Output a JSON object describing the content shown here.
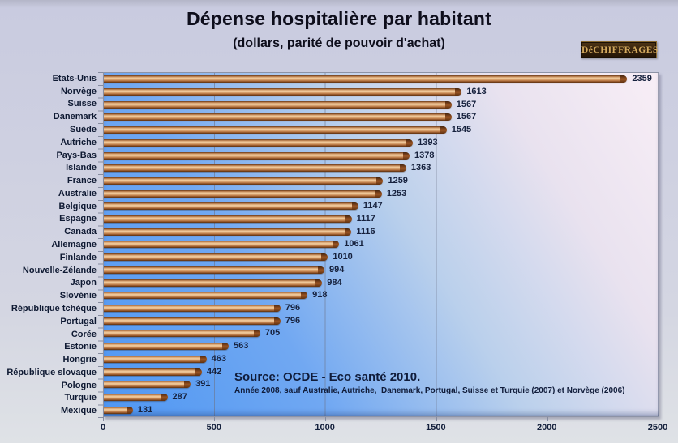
{
  "title": "Dépense hospitalière par habitant",
  "subtitle": "(dollars, parité de pouvoir d'achat)",
  "logo": {
    "text": "DéCHIFFRAGES"
  },
  "source": {
    "line1": "Source: OCDE - Eco santé 2010.",
    "line2": "Année 2008, sauf Australie, Autriche,  Danemark, Portugal, Suisse et Turquie (2007) et Norvège (2006)"
  },
  "chart_data": {
    "type": "bar",
    "orientation": "horizontal",
    "title": "Dépense hospitalière par habitant",
    "subtitle": "(dollars, parité de pouvoir d'achat)",
    "categories": [
      "Etats-Unis",
      "Norvège",
      "Suisse",
      "Danemark",
      "Suède",
      "Autriche",
      "Pays-Bas",
      "Islande",
      "France",
      "Australie",
      "Belgique",
      "Espagne",
      "Canada",
      "Allemagne",
      "Finlande",
      "Nouvelle-Zélande",
      "Japon",
      "Slovénie",
      "République tchèque",
      "Portugal",
      "Corée",
      "Estonie",
      "Hongrie",
      "République slovaque",
      "Pologne",
      "Turquie",
      "Mexique"
    ],
    "values": [
      2359,
      1613,
      1567,
      1567,
      1545,
      1393,
      1378,
      1363,
      1259,
      1253,
      1147,
      1117,
      1116,
      1061,
      1010,
      994,
      984,
      918,
      796,
      796,
      705,
      563,
      463,
      442,
      391,
      287,
      131
    ],
    "xlim": [
      0,
      2500
    ],
    "xticks": [
      0,
      500,
      1000,
      1500,
      2000,
      2500
    ],
    "grid": true,
    "legend": false,
    "value_labels": true
  },
  "colors": {
    "background": "#c9cbe0",
    "plot_left": "#4f97f3",
    "plot_right": "#f8eef6",
    "bar_highlight": "#f2cda0",
    "bar_mid": "#c98a54",
    "bar_dark": "#5e3315",
    "label_text": "#0f1a33",
    "logo_gold": "#d4aa5e",
    "logo_bg": "#32200c"
  }
}
